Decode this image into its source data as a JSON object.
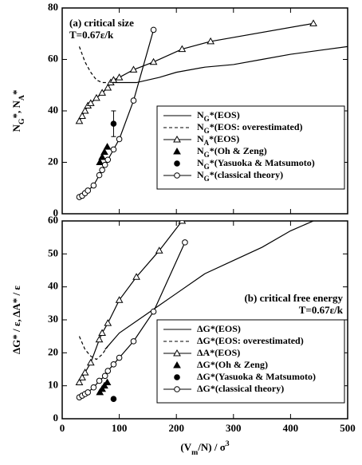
{
  "chart_data": [
    {
      "type": "line",
      "ylabel": "NG*, NA*",
      "annotations": [
        "(a) critical size",
        "T=0.67ε/k"
      ],
      "xlim": [
        0,
        500
      ],
      "xticks": [
        0,
        100,
        200,
        300,
        400,
        500
      ],
      "ylim": [
        0,
        80
      ],
      "yticks": [
        0,
        20,
        40,
        60,
        80
      ],
      "series": [
        {
          "name": "NG*(EOS)",
          "color": "#000000",
          "line": "solid",
          "marker": "none",
          "x": [
            85,
            100,
            130,
            170,
            200,
            250,
            300,
            350,
            400,
            450,
            500
          ],
          "values": [
            51,
            51,
            51,
            53,
            55,
            57,
            58,
            60,
            62,
            63.5,
            65
          ]
        },
        {
          "name": "NG*(EOS: overestimated)",
          "color": "#000000",
          "line": "dashed",
          "marker": "none",
          "x": [
            30,
            40,
            50,
            60,
            70,
            85
          ],
          "values": [
            65,
            59,
            55,
            52,
            51,
            51
          ]
        },
        {
          "name": "NA*(EOS)",
          "color": "#000000",
          "line": "solid",
          "marker": "triangle-open",
          "x": [
            30,
            35,
            40,
            45,
            50,
            60,
            70,
            80,
            85,
            90,
            100,
            125,
            160,
            210,
            260,
            440
          ],
          "values": [
            36,
            38,
            40,
            42,
            43,
            45,
            47,
            49,
            51,
            52,
            53,
            56,
            59,
            64,
            67,
            74
          ]
        },
        {
          "name": "NG*(Oh & Zeng)",
          "color": "#000000",
          "line": "none",
          "marker": "triangle",
          "x": [
            66,
            70,
            74,
            79
          ],
          "values": [
            20,
            22,
            24,
            26
          ]
        },
        {
          "name": "NG*(Yasuoka & Matsumoto)",
          "color": "#000000",
          "line": "none",
          "marker": "circle",
          "x": [
            90
          ],
          "values": [
            35
          ],
          "errors": [
            5
          ]
        },
        {
          "name": "NG*(classical theory)",
          "color": "#000000",
          "line": "solid",
          "marker": "circle-open",
          "x": [
            30,
            35,
            40,
            45,
            55,
            65,
            70,
            75,
            80,
            90,
            100,
            125,
            160
          ],
          "values": [
            6.5,
            7,
            8,
            9,
            11,
            15,
            17,
            19,
            21,
            25,
            29,
            44,
            71.5
          ]
        }
      ]
    },
    {
      "type": "line",
      "ylabel": "ΔG* / ε, ΔA* / ε",
      "xlabel": "(Vm/N) / σ3",
      "annotations": [
        "(b) critical free energy",
        "T=0.67ε/k"
      ],
      "xlim": [
        0,
        500
      ],
      "xticks": [
        0,
        100,
        200,
        300,
        400,
        500
      ],
      "ylim": [
        0,
        60
      ],
      "yticks": [
        0,
        10,
        20,
        30,
        40,
        50,
        60
      ],
      "series": [
        {
          "name": "ΔG*(EOS)",
          "color": "#000000",
          "line": "solid",
          "marker": "none",
          "x": [
            75,
            100,
            150,
            200,
            250,
            300,
            350,
            400,
            440
          ],
          "values": [
            21,
            26,
            32,
            38,
            44,
            48,
            52,
            57,
            60
          ]
        },
        {
          "name": "ΔG*(EOS: overestimated)",
          "color": "#000000",
          "line": "dashed",
          "marker": "none",
          "x": [
            30,
            40,
            50,
            60,
            70,
            80
          ],
          "values": [
            25,
            21,
            19,
            18,
            19.5,
            22
          ]
        },
        {
          "name": "ΔA*(EOS)",
          "color": "#000000",
          "line": "solid",
          "marker": "triangle-open",
          "x": [
            30,
            35,
            40,
            50,
            65,
            70,
            80,
            100,
            130,
            170,
            210
          ],
          "values": [
            11,
            12.5,
            14,
            17,
            24,
            26,
            29,
            36,
            43,
            51,
            60
          ]
        },
        {
          "name": "ΔG*(Oh & Zeng)",
          "color": "#000000",
          "line": "none",
          "marker": "triangle",
          "x": [
            66,
            70,
            74,
            79
          ],
          "values": [
            8,
            9,
            10,
            11
          ]
        },
        {
          "name": "ΔG*(Yasuoka & Matsumoto)",
          "color": "#000000",
          "line": "none",
          "marker": "circle",
          "x": [
            90
          ],
          "values": [
            6
          ]
        },
        {
          "name": "ΔG*(classical theory)",
          "color": "#000000",
          "line": "solid",
          "marker": "circle-open",
          "x": [
            30,
            35,
            40,
            45,
            55,
            65,
            75,
            80,
            90,
            100,
            125,
            160,
            215
          ],
          "values": [
            6.5,
            7,
            7.5,
            8,
            9.5,
            11.5,
            13,
            14.5,
            16.5,
            18.5,
            23.5,
            32.5,
            53.5
          ]
        }
      ]
    }
  ]
}
